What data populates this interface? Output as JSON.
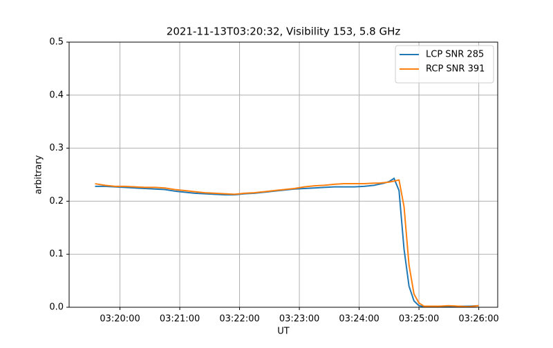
{
  "chart_data": {
    "type": "line",
    "title": "2021-11-13T03:20:32, Visibility 153, 5.8 GHz",
    "x_label": "UT",
    "y_label": "arbitrary",
    "x": [
      "03:19:35",
      "03:19:45",
      "03:19:55",
      "03:20:05",
      "03:20:15",
      "03:20:25",
      "03:20:35",
      "03:20:45",
      "03:20:55",
      "03:21:05",
      "03:21:15",
      "03:21:25",
      "03:21:35",
      "03:21:45",
      "03:21:55",
      "03:22:05",
      "03:22:15",
      "03:22:25",
      "03:22:35",
      "03:22:45",
      "03:22:55",
      "03:23:05",
      "03:23:15",
      "03:23:25",
      "03:23:35",
      "03:23:45",
      "03:23:55",
      "03:24:05",
      "03:24:15",
      "03:24:20",
      "03:24:25",
      "03:24:30",
      "03:24:35",
      "03:24:40",
      "03:24:45",
      "03:24:50",
      "03:24:55",
      "03:25:00",
      "03:25:05",
      "03:25:10",
      "03:25:20",
      "03:25:30",
      "03:25:40",
      "03:25:50",
      "03:26:00"
    ],
    "series": [
      {
        "name": "LCP SNR 285",
        "color": "#1f77b4",
        "values": [
          0.228,
          0.228,
          0.227,
          0.226,
          0.225,
          0.224,
          0.223,
          0.222,
          0.219,
          0.217,
          0.215,
          0.214,
          0.213,
          0.212,
          0.212,
          0.214,
          0.215,
          0.217,
          0.219,
          0.221,
          0.223,
          0.224,
          0.225,
          0.226,
          0.227,
          0.227,
          0.227,
          0.228,
          0.23,
          0.232,
          0.234,
          0.237,
          0.243,
          0.22,
          0.11,
          0.04,
          0.012,
          0.003,
          0.001,
          0.001,
          0.002,
          0.002,
          0.002,
          0.002,
          0.003
        ]
      },
      {
        "name": "RCP SNR 391",
        "color": "#ff7f0e",
        "values": [
          0.233,
          0.23,
          0.228,
          0.228,
          0.227,
          0.226,
          0.226,
          0.225,
          0.222,
          0.22,
          0.218,
          0.216,
          0.215,
          0.214,
          0.213,
          0.215,
          0.216,
          0.218,
          0.22,
          0.222,
          0.224,
          0.227,
          0.229,
          0.23,
          0.232,
          0.233,
          0.233,
          0.233,
          0.234,
          0.234,
          0.235,
          0.236,
          0.238,
          0.24,
          0.19,
          0.08,
          0.025,
          0.008,
          0.002,
          0.002,
          0.002,
          0.003,
          0.002,
          0.001,
          0.003
        ]
      }
    ],
    "xlim": [
      "03:19:09",
      "03:26:19"
    ],
    "xticks": [
      "03:20:00",
      "03:21:00",
      "03:22:00",
      "03:23:00",
      "03:24:00",
      "03:25:00",
      "03:26:00"
    ],
    "ylim": [
      0,
      0.5
    ],
    "yticks": [
      {
        "value": 0,
        "label": "0.0"
      },
      0.1,
      0.2,
      0.3,
      0.4,
      0.5
    ],
    "grid": true,
    "legend": "upper right"
  }
}
